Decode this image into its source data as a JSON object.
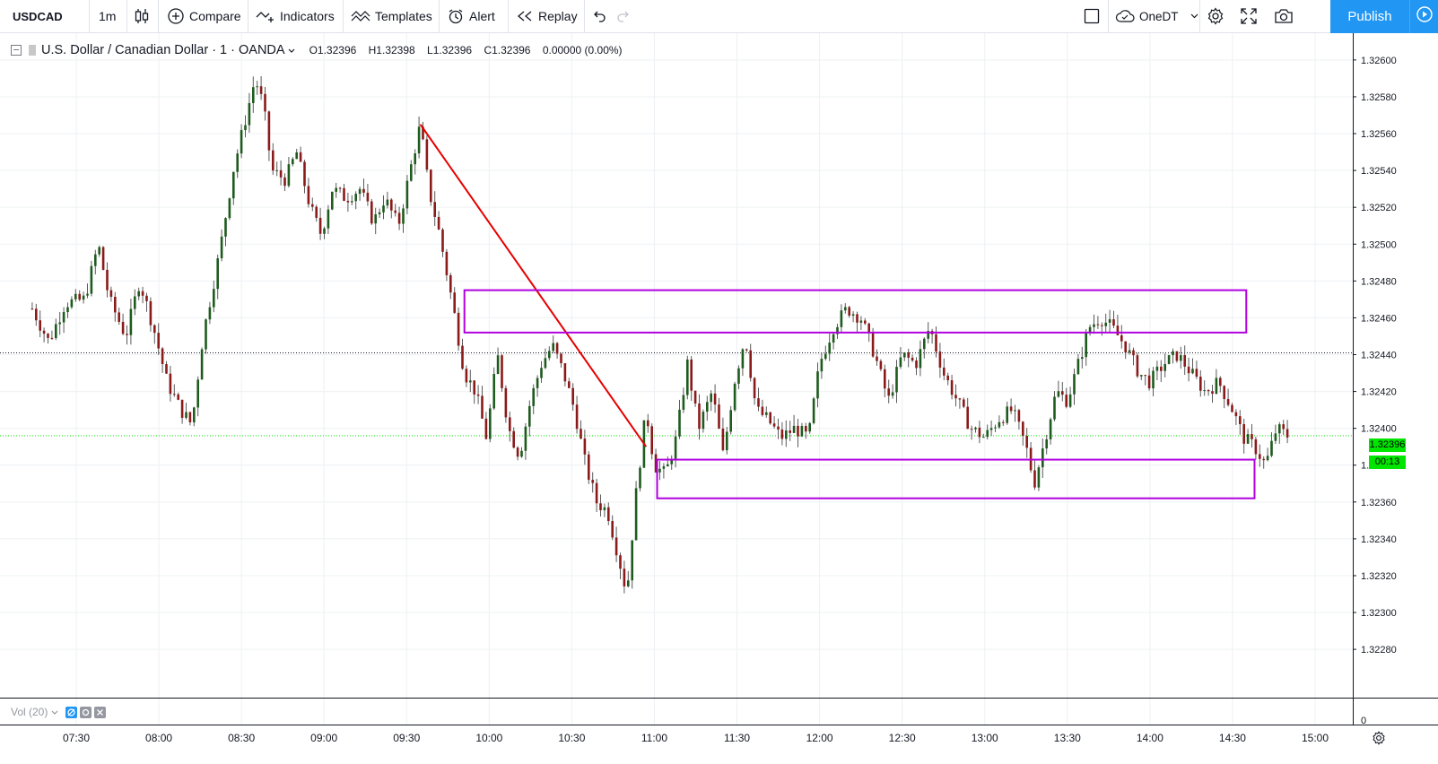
{
  "toolbar": {
    "symbol": "USDCAD",
    "interval": "1m",
    "compare_label": "Compare",
    "indicators_label": "Indicators",
    "templates_label": "Templates",
    "alert_label": "Alert",
    "replay_label": "Replay",
    "layout_name": "OneDT",
    "publish_label": "Publish",
    "icons": [
      "candles-icon",
      "compare-plus-icon",
      "indicators-icon",
      "templates-icon",
      "alert-clock-icon",
      "replay-icon",
      "undo-icon",
      "redo-icon",
      "square-icon",
      "cloud-icon",
      "chevron-down-icon",
      "gear-icon",
      "fullscreen-icon",
      "camera-icon",
      "play-icon"
    ]
  },
  "legend": {
    "title": "U.S. Dollar / Canadian Dollar · 1 · OANDA",
    "open": "O1.32396",
    "high": "H1.32398",
    "low": "L1.32396",
    "close": "C1.32396",
    "change": "0.00000 (0.00%)"
  },
  "volume": {
    "label": "Vol (20)"
  },
  "colors": {
    "up": "#1e5b1e",
    "down": "#8b1a1a",
    "wick": "#5a5a5a",
    "box": "#b000e0",
    "trendline": "#e60000",
    "current_price": "#00e600",
    "accent": "#2196f3"
  },
  "chart_data": {
    "type": "candlestick",
    "symbol": "USDCAD",
    "x": [
      "07:30",
      "08:00",
      "08:30",
      "09:00",
      "09:30",
      "10:00",
      "10:30",
      "11:00",
      "11:30",
      "12:00",
      "12:30",
      "13:00",
      "13:30",
      "14:00",
      "14:30",
      "15:00"
    ],
    "x_ticks": [
      "07:30",
      "08:00",
      "08:30",
      "09:00",
      "09:30",
      "10:00",
      "10:30",
      "11:00",
      "11:30",
      "12:00",
      "12:30",
      "13:00",
      "13:30",
      "14:00",
      "14:30",
      "15:00"
    ],
    "y_ticks": [
      "1.32280",
      "1.32300",
      "1.32320",
      "1.32340",
      "1.32360",
      "1.32380",
      "1.32400",
      "1.32420",
      "1.32440",
      "1.32460",
      "1.32480",
      "1.32500",
      "1.32520",
      "1.32540",
      "1.32560",
      "1.32580",
      "1.32600"
    ],
    "ylim": [
      1.32264,
      1.32616
    ],
    "current_price": "1.32396",
    "countdown": "00:13",
    "volume_axis_label": "0",
    "dotted_level": 1.32441,
    "path_points": [
      [
        "07:14",
        1.32465
      ],
      [
        "07:20",
        1.32447
      ],
      [
        "07:26",
        1.32468
      ],
      [
        "07:33",
        1.3247
      ],
      [
        "07:38",
        1.325
      ],
      [
        "07:42",
        1.3247
      ],
      [
        "07:48",
        1.3245
      ],
      [
        "07:53",
        1.3248
      ],
      [
        "07:58",
        1.32455
      ],
      [
        "08:03",
        1.32425
      ],
      [
        "08:08",
        1.3241
      ],
      [
        "08:12",
        1.32402
      ],
      [
        "08:16",
        1.3245
      ],
      [
        "08:22",
        1.32495
      ],
      [
        "08:27",
        1.3254
      ],
      [
        "08:31",
        1.32565
      ],
      [
        "08:35",
        1.3259
      ],
      [
        "08:38",
        1.32575
      ],
      [
        "08:41",
        1.3254
      ],
      [
        "08:46",
        1.32535
      ],
      [
        "08:50",
        1.3255
      ],
      [
        "08:55",
        1.3252
      ],
      [
        "08:59",
        1.32505
      ],
      [
        "09:03",
        1.3253
      ],
      [
        "09:08",
        1.32525
      ],
      [
        "09:13",
        1.3253
      ],
      [
        "09:18",
        1.32512
      ],
      [
        "09:22",
        1.32525
      ],
      [
        "09:27",
        1.3251
      ],
      [
        "09:32",
        1.32545
      ],
      [
        "09:35",
        1.32565
      ],
      [
        "09:38",
        1.3253
      ],
      [
        "09:42",
        1.32505
      ],
      [
        "09:47",
        1.32465
      ],
      [
        "09:51",
        1.3243
      ],
      [
        "09:55",
        1.3242
      ],
      [
        "09:59",
        1.32395
      ],
      [
        "10:03",
        1.3244
      ],
      [
        "10:07",
        1.324
      ],
      [
        "10:11",
        1.32385
      ],
      [
        "10:15",
        1.32415
      ],
      [
        "10:19",
        1.32435
      ],
      [
        "10:23",
        1.32445
      ],
      [
        "10:27",
        1.3243
      ],
      [
        "10:31",
        1.3241
      ],
      [
        "10:35",
        1.3238
      ],
      [
        "10:39",
        1.3236
      ],
      [
        "10:43",
        1.32355
      ],
      [
        "10:47",
        1.3233
      ],
      [
        "10:50",
        1.3231
      ],
      [
        "10:53",
        1.3236
      ],
      [
        "10:57",
        1.3241
      ],
      [
        "11:00",
        1.3238
      ],
      [
        "11:04",
        1.32375
      ],
      [
        "11:08",
        1.32395
      ],
      [
        "11:12",
        1.32435
      ],
      [
        "11:16",
        1.324
      ],
      [
        "11:21",
        1.3242
      ],
      [
        "11:25",
        1.32385
      ],
      [
        "11:29",
        1.32425
      ],
      [
        "11:33",
        1.3245
      ],
      [
        "11:37",
        1.3241
      ],
      [
        "11:41",
        1.32405
      ],
      [
        "11:46",
        1.32395
      ],
      [
        "11:51",
        1.324
      ],
      [
        "11:56",
        1.32395
      ],
      [
        "12:00",
        1.32435
      ],
      [
        "12:05",
        1.32455
      ],
      [
        "12:10",
        1.32465
      ],
      [
        "12:15",
        1.3246
      ],
      [
        "12:20",
        1.3244
      ],
      [
        "12:25",
        1.32415
      ],
      [
        "12:30",
        1.3244
      ],
      [
        "12:35",
        1.32435
      ],
      [
        "12:40",
        1.32455
      ],
      [
        "12:45",
        1.3243
      ],
      [
        "12:50",
        1.32415
      ],
      [
        "12:55",
        1.324
      ],
      [
        "13:00",
        1.32395
      ],
      [
        "13:05",
        1.32405
      ],
      [
        "13:10",
        1.3241
      ],
      [
        "13:15",
        1.3239
      ],
      [
        "13:18",
        1.3237
      ],
      [
        "13:22",
        1.32395
      ],
      [
        "13:26",
        1.3242
      ],
      [
        "13:30",
        1.32415
      ],
      [
        "13:34",
        1.32435
      ],
      [
        "13:38",
        1.32455
      ],
      [
        "13:42",
        1.3246
      ],
      [
        "13:46",
        1.32455
      ],
      [
        "13:51",
        1.32445
      ],
      [
        "13:56",
        1.3243
      ],
      [
        "14:00",
        1.32425
      ],
      [
        "14:05",
        1.32435
      ],
      [
        "14:10",
        1.3244
      ],
      [
        "14:15",
        1.3243
      ],
      [
        "14:20",
        1.3242
      ],
      [
        "14:25",
        1.32425
      ],
      [
        "14:30",
        1.3241
      ],
      [
        "14:34",
        1.32395
      ],
      [
        "14:38",
        1.3239
      ],
      [
        "14:42",
        1.3238
      ],
      [
        "14:46",
        1.324
      ],
      [
        "14:50",
        1.32396
      ]
    ],
    "annotations": [
      {
        "type": "trendline",
        "from": [
          "09:35",
          1.32565
        ],
        "to": [
          "10:57",
          1.3239
        ]
      },
      {
        "type": "rectangle",
        "from": [
          "09:51",
          1.32475
        ],
        "to": [
          "14:35",
          1.32452
        ]
      },
      {
        "type": "rectangle",
        "from": [
          "11:01",
          1.32383
        ],
        "to": [
          "14:38",
          1.32362
        ]
      }
    ]
  }
}
